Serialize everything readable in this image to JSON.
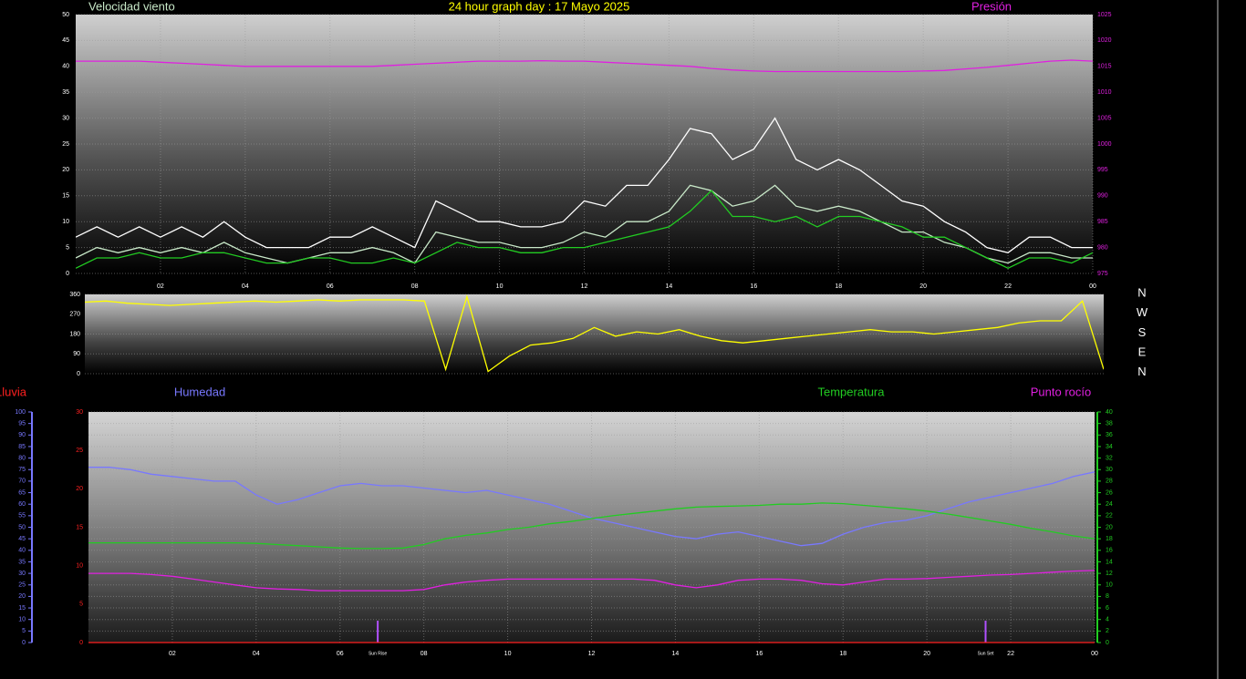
{
  "chart_data": [
    {
      "type": "line",
      "title": "24 hour graph day : 17 Mayo 2025",
      "x": [
        0,
        0.5,
        1,
        1.5,
        2,
        2.5,
        3,
        3.5,
        4,
        4.5,
        5,
        5.5,
        6,
        6.5,
        7,
        7.5,
        8,
        8.5,
        9,
        9.5,
        10,
        10.5,
        11,
        11.5,
        12,
        12.5,
        13,
        13.5,
        14,
        14.5,
        15,
        15.5,
        16,
        16.5,
        17,
        17.5,
        18,
        18.5,
        19,
        19.5,
        20,
        20.5,
        21,
        21.5,
        22,
        22.5,
        23,
        23.5,
        24
      ],
      "xlim": [
        0,
        24
      ],
      "xticks": [
        {
          "value": 2,
          "label": "02"
        },
        {
          "value": 4,
          "label": "04"
        },
        {
          "value": 6,
          "label": "06"
        },
        {
          "value": 8,
          "label": "08"
        },
        10,
        12,
        14,
        16,
        18,
        20,
        22,
        {
          "value": 24,
          "label": "00"
        }
      ],
      "ylim": [
        0,
        50
      ],
      "yticks": [
        0,
        5,
        10,
        15,
        20,
        25,
        30,
        35,
        40,
        45,
        50
      ],
      "y2lim": [
        975,
        1025
      ],
      "y2ticks": [
        975,
        980,
        985,
        990,
        995,
        1000,
        1005,
        1010,
        1015,
        1020,
        1025
      ],
      "grid": true,
      "series": [
        {
          "color": "#ffffff",
          "values": [
            7,
            9,
            7,
            9,
            7,
            9,
            7,
            10,
            7,
            5,
            5,
            5,
            7,
            7,
            9,
            7,
            5,
            14,
            12,
            10,
            10,
            9,
            9,
            10,
            14,
            13,
            17,
            17,
            22,
            28,
            27,
            22,
            24,
            30,
            22,
            20,
            22,
            20,
            17,
            14,
            13,
            10,
            8,
            5,
            4,
            7,
            7,
            5,
            5
          ]
        },
        {
          "name": "Velocidad viento",
          "color": "#c8e8c8",
          "values": [
            3,
            5,
            4,
            5,
            4,
            5,
            4,
            6,
            4,
            3,
            2,
            3,
            4,
            4,
            5,
            4,
            2,
            8,
            7,
            6,
            6,
            5,
            5,
            6,
            8,
            7,
            10,
            10,
            12,
            17,
            16,
            13,
            14,
            17,
            13,
            12,
            13,
            12,
            10,
            8,
            8,
            6,
            5,
            3,
            2,
            4,
            4,
            3,
            3
          ]
        },
        {
          "color": "#22cc22",
          "values": [
            1,
            3,
            3,
            4,
            3,
            3,
            4,
            4,
            3,
            2,
            2,
            3,
            3,
            2,
            2,
            3,
            2,
            4,
            6,
            5,
            5,
            4,
            4,
            5,
            5,
            6,
            7,
            8,
            9,
            12,
            16,
            11,
            11,
            10,
            11,
            9,
            11,
            11,
            10,
            9,
            7,
            7,
            5,
            3,
            1,
            3,
            3,
            2,
            4
          ]
        },
        {
          "name": "Presión",
          "color": "#e020e0",
          "axis": "y2",
          "values": [
            1016,
            1016,
            1016,
            1016,
            1015.8,
            1015.6,
            1015.4,
            1015.2,
            1015,
            1015,
            1015,
            1015,
            1015,
            1015,
            1015,
            1015.2,
            1015.4,
            1015.6,
            1015.8,
            1016,
            1016,
            1016,
            1016.1,
            1016,
            1016,
            1015.8,
            1015.6,
            1015.4,
            1015.2,
            1015,
            1014.6,
            1014.3,
            1014.1,
            1014,
            1014,
            1014,
            1014,
            1014,
            1014,
            1014,
            1014.1,
            1014.2,
            1014.5,
            1014.8,
            1015.2,
            1015.6,
            1016,
            1016.2,
            1016
          ]
        }
      ]
    },
    {
      "type": "line",
      "x": [
        0,
        0.5,
        1,
        1.5,
        2,
        2.5,
        3,
        3.5,
        4,
        4.5,
        5,
        5.5,
        6,
        6.5,
        7,
        7.5,
        8,
        8.5,
        9,
        9.5,
        10,
        10.5,
        11,
        11.5,
        12,
        12.5,
        13,
        13.5,
        14,
        14.5,
        15,
        15.5,
        16,
        16.5,
        17,
        17.5,
        18,
        18.5,
        19,
        19.5,
        20,
        20.5,
        21,
        21.5,
        22,
        22.5,
        23,
        23.5,
        24
      ],
      "xlim": [
        0,
        24
      ],
      "ylim": [
        0,
        360
      ],
      "yticks": [
        0,
        90,
        180,
        270,
        360
      ],
      "grid": true,
      "direction_labels": [
        "N",
        "W",
        "S",
        "E",
        "N"
      ],
      "series": [
        {
          "color": "#ffff00",
          "values": [
            325,
            330,
            320,
            315,
            310,
            315,
            320,
            325,
            330,
            325,
            330,
            335,
            330,
            335,
            335,
            335,
            330,
            20,
            350,
            10,
            80,
            130,
            140,
            160,
            210,
            170,
            190,
            180,
            200,
            170,
            150,
            140,
            150,
            160,
            170,
            180,
            190,
            200,
            190,
            190,
            180,
            190,
            200,
            210,
            230,
            240,
            240,
            330,
            20
          ]
        }
      ]
    },
    {
      "type": "line",
      "x": [
        0,
        0.5,
        1,
        1.5,
        2,
        2.5,
        3,
        3.5,
        4,
        4.5,
        5,
        5.5,
        6,
        6.5,
        7,
        7.5,
        8,
        8.5,
        9,
        9.5,
        10,
        10.5,
        11,
        11.5,
        12,
        12.5,
        13,
        13.5,
        14,
        14.5,
        15,
        15.5,
        16,
        16.5,
        17,
        17.5,
        18,
        18.5,
        19,
        19.5,
        20,
        20.5,
        21,
        21.5,
        22,
        22.5,
        23,
        23.5,
        24
      ],
      "xlim": [
        0,
        24
      ],
      "xticks": [
        {
          "value": 2,
          "label": "02"
        },
        {
          "value": 4,
          "label": "04"
        },
        {
          "value": 6,
          "label": "06"
        },
        {
          "value": 8,
          "label": "08"
        },
        10,
        12,
        14,
        16,
        18,
        20,
        22,
        {
          "value": 24,
          "label": "00"
        }
      ],
      "ylim": [
        0,
        100
      ],
      "yticks": [
        0,
        5,
        10,
        15,
        20,
        25,
        30,
        35,
        40,
        45,
        50,
        55,
        60,
        65,
        70,
        75,
        80,
        85,
        90,
        95,
        100
      ],
      "y2lim": [
        0,
        40
      ],
      "y2ticks": [
        0,
        2,
        4,
        6,
        8,
        10,
        12,
        14,
        16,
        18,
        20,
        22,
        24,
        26,
        28,
        30,
        32,
        34,
        36,
        38,
        40
      ],
      "y3lim": [
        0,
        30
      ],
      "y3ticks": [
        0,
        5,
        10,
        15,
        20,
        25,
        30
      ],
      "grid": true,
      "annotations": [
        {
          "label": "Sun Rise",
          "x": 6.9
        },
        {
          "label": "Sun Set",
          "x": 21.4
        }
      ],
      "series": [
        {
          "name": "Humedad",
          "color": "#7878ff",
          "values": [
            76,
            76,
            75,
            73,
            72,
            71,
            70,
            70,
            64,
            60,
            62,
            65,
            68,
            69,
            68,
            68,
            67,
            66,
            65,
            66,
            64,
            62,
            60,
            57,
            54,
            52,
            50,
            48,
            46,
            45,
            47,
            48,
            46,
            44,
            42,
            43,
            47,
            50,
            52,
            53,
            55,
            58,
            61,
            63,
            65,
            67,
            69,
            72,
            74
          ]
        },
        {
          "name": "Temperatura",
          "color": "#22cc22",
          "axis": "y2",
          "values": [
            17.3,
            17.3,
            17.3,
            17.3,
            17.3,
            17.3,
            17.3,
            17.3,
            17.2,
            17,
            16.8,
            16.6,
            16.4,
            16.3,
            16.3,
            16.4,
            17,
            18,
            18.6,
            19,
            19.6,
            20,
            20.6,
            21,
            21.5,
            22,
            22.4,
            22.8,
            23.2,
            23.5,
            23.6,
            23.7,
            23.8,
            24,
            24,
            24.2,
            24.1,
            23.8,
            23.5,
            23.2,
            22.8,
            22.3,
            21.7,
            21.1,
            20.5,
            19.8,
            19.2,
            18.5,
            18
          ]
        },
        {
          "name": "Punto rocío",
          "color": "#e020e0",
          "axis": "y2",
          "values": [
            12,
            12,
            12,
            11.8,
            11.5,
            11,
            10.5,
            10,
            9.5,
            9.3,
            9.2,
            9,
            9,
            9,
            9,
            9,
            9.2,
            10,
            10.5,
            10.8,
            11,
            11,
            11,
            11,
            11,
            11,
            11,
            10.8,
            10,
            9.5,
            10,
            10.8,
            11,
            11,
            10.8,
            10.2,
            10,
            10.5,
            11,
            11,
            11.1,
            11.3,
            11.5,
            11.7,
            11.8,
            12,
            12.2,
            12.4,
            12.5
          ]
        },
        {
          "name": "Lluvia",
          "color": "#ff2020",
          "axis": "y3",
          "values": [
            0,
            0,
            0,
            0,
            0,
            0,
            0,
            0,
            0,
            0,
            0,
            0,
            0,
            0,
            0,
            0,
            0,
            0,
            0,
            0,
            0,
            0,
            0,
            0,
            0,
            0,
            0,
            0,
            0,
            0,
            0,
            0,
            0,
            0,
            0,
            0,
            0,
            0,
            0,
            0,
            0,
            0,
            0,
            0,
            0,
            0,
            0,
            0,
            0
          ]
        }
      ]
    }
  ]
}
